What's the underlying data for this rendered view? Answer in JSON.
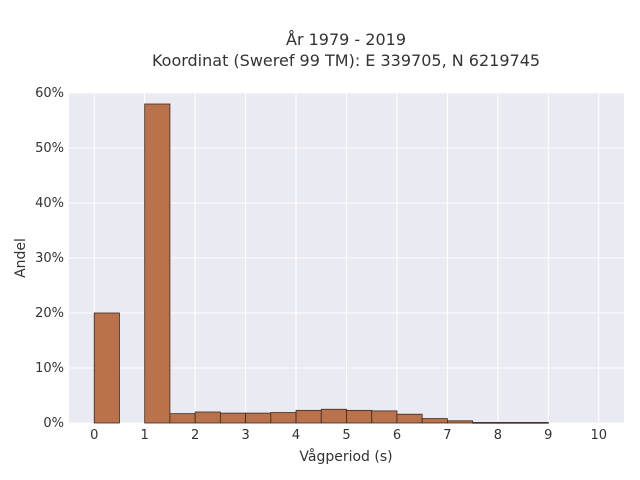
{
  "chart_data": {
    "type": "bar",
    "title": [
      "År 1979 - 2019",
      "Koordinat (Sweref 99 TM): E 339705, N 6219745"
    ],
    "xlabel": "Vågperiod (s)",
    "ylabel": "Andel",
    "xlim": [
      -0.5,
      10.5
    ],
    "ylim": [
      0,
      60
    ],
    "x_ticks": [
      0,
      1,
      2,
      3,
      4,
      5,
      6,
      7,
      8,
      9,
      10
    ],
    "y_ticks": [
      0,
      10,
      20,
      30,
      40,
      50,
      60
    ],
    "y_tick_labels": [
      "0%",
      "10%",
      "20%",
      "30%",
      "40%",
      "50%",
      "60%"
    ],
    "bin_width": 0.5,
    "bins": [
      {
        "start": 0.0,
        "value": 20.0
      },
      {
        "start": 0.5,
        "value": 0.0
      },
      {
        "start": 1.0,
        "value": 58.0
      },
      {
        "start": 1.5,
        "value": 1.7
      },
      {
        "start": 2.0,
        "value": 2.0
      },
      {
        "start": 2.5,
        "value": 1.8
      },
      {
        "start": 3.0,
        "value": 1.8
      },
      {
        "start": 3.5,
        "value": 1.9
      },
      {
        "start": 4.0,
        "value": 2.3
      },
      {
        "start": 4.5,
        "value": 2.5
      },
      {
        "start": 5.0,
        "value": 2.3
      },
      {
        "start": 5.5,
        "value": 2.2
      },
      {
        "start": 6.0,
        "value": 1.6
      },
      {
        "start": 6.5,
        "value": 0.8
      },
      {
        "start": 7.0,
        "value": 0.4
      },
      {
        "start": 7.5,
        "value": 0.1
      },
      {
        "start": 8.0,
        "value": 0.1
      },
      {
        "start": 8.5,
        "value": 0.1
      },
      {
        "start": 9.0,
        "value": 0.0
      },
      {
        "start": 9.5,
        "value": 0.0
      }
    ],
    "grid": true,
    "colors": {
      "bar": "#b9724b",
      "bar_edge": "#3a2a22",
      "plot_background": "#eaeaf2",
      "grid": "#ffffff"
    }
  }
}
